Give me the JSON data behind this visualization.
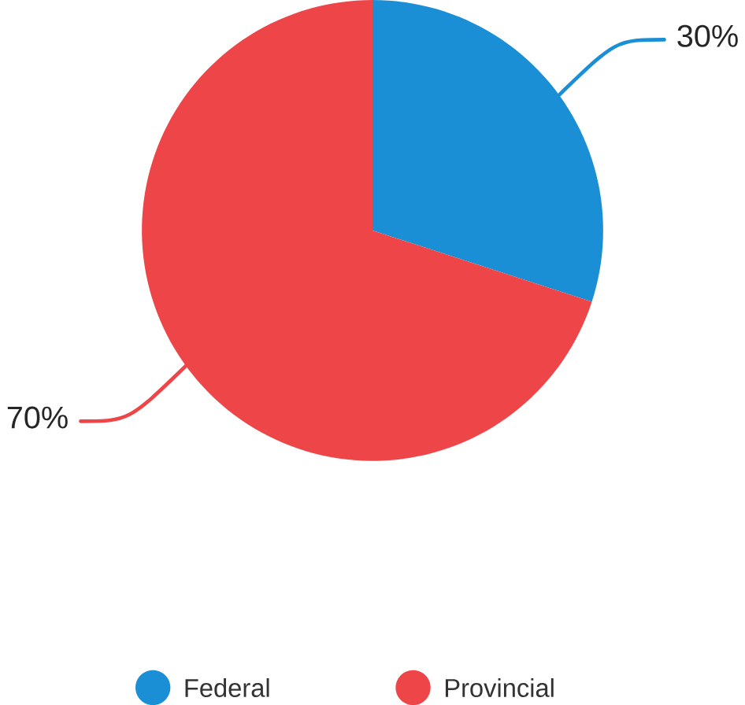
{
  "chart_data": {
    "type": "pie",
    "categories": [
      "Federal",
      "Provincial"
    ],
    "values": [
      30,
      70
    ],
    "colors": [
      "#1b8fd6",
      "#ee4648"
    ],
    "value_labels": [
      "30%",
      "70%"
    ],
    "legend": "bottom"
  }
}
